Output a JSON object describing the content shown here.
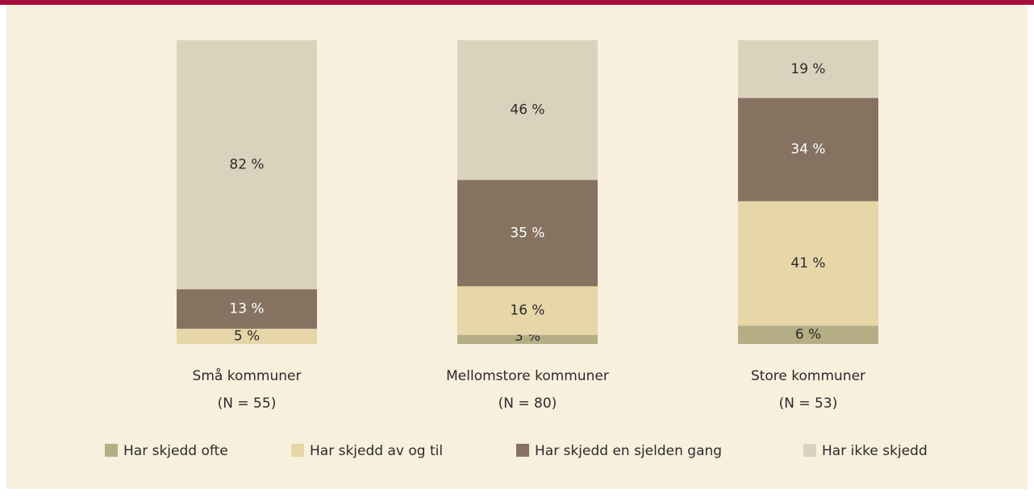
{
  "chart_data": {
    "type": "stacked_bar",
    "categories": [
      "Små kommuner",
      "Mellomstore kommuner",
      "Store kommuner"
    ],
    "category_notes": [
      "(N = 55)",
      "(N = 80)",
      "(N = 53)"
    ],
    "ylim": [
      0,
      100
    ],
    "legend": "bottom",
    "series": [
      {
        "name": "Har skjedd ofte",
        "color": "#b5ad84",
        "values": [
          null,
          3,
          6
        ],
        "value_labels": [
          null,
          "3 %",
          "6 %"
        ]
      },
      {
        "name": "Har skjedd av og til",
        "color": "#e6d6a8",
        "values": [
          5,
          16,
          41
        ],
        "value_labels": [
          "5 %",
          "16 %",
          "41 %"
        ]
      },
      {
        "name": "Har skjedd en sjelden gang",
        "color": "#857261",
        "values": [
          13,
          35,
          34
        ],
        "value_labels": [
          "13 %",
          "35 %",
          "34 %"
        ]
      },
      {
        "name": "Har ikke skjedd",
        "color": "#dbd2bd",
        "values": [
          82,
          46,
          19
        ],
        "value_labels": [
          "82 %",
          "46 %",
          "19 %"
        ]
      }
    ]
  }
}
